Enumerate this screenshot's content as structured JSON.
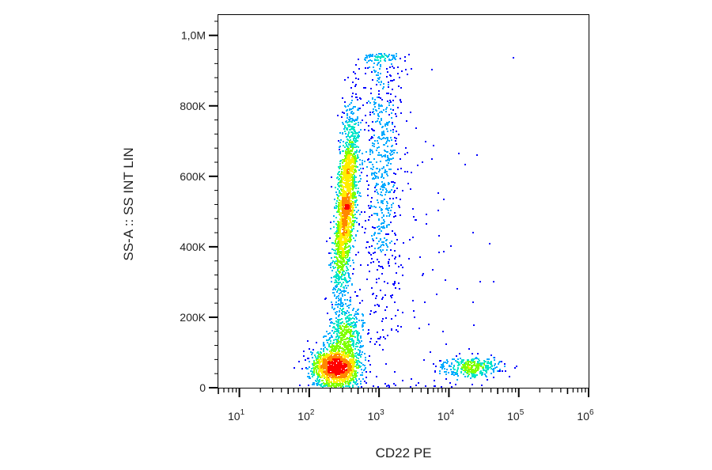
{
  "chart_data": {
    "type": "scatter",
    "subtype": "flow-cytometry-density-dot-plot",
    "xlabel": "CD22 PE",
    "ylabel": "SS-A :: SS INT LIN",
    "x_scale": "log",
    "y_scale": "linear",
    "xlim": [
      5,
      1000000
    ],
    "ylim": [
      0,
      1060000
    ],
    "x_ticks": [
      {
        "value": 10,
        "base": "10",
        "exp": "1"
      },
      {
        "value": 100,
        "base": "10",
        "exp": "2"
      },
      {
        "value": 1000,
        "base": "10",
        "exp": "3"
      },
      {
        "value": 10000,
        "base": "10",
        "exp": "4"
      },
      {
        "value": 100000,
        "base": "10",
        "exp": "5"
      },
      {
        "value": 1000000,
        "base": "10",
        "exp": "6"
      }
    ],
    "y_ticks": [
      {
        "value": 0,
        "label": "0"
      },
      {
        "value": 200000,
        "label": "200K"
      },
      {
        "value": 400000,
        "label": "400K"
      },
      {
        "value": 600000,
        "label": "600K"
      },
      {
        "value": 800000,
        "label": "800K"
      },
      {
        "value": 1000000,
        "label": "1,0M"
      }
    ],
    "grid": false,
    "colormap": [
      "#0000ff",
      "#00aaff",
      "#00e5c8",
      "#7fff00",
      "#ffee00",
      "#ff8800",
      "#ff0000"
    ],
    "populations": [
      {
        "center_x": 230,
        "center_y": 60000,
        "spread_log_x": 0.17,
        "spread_y": 30000,
        "events": 1400,
        "tilt": 0.0,
        "tilt_sd": 0.0
      },
      {
        "center_x": 340,
        "center_y": 150000,
        "spread_log_x": 0.12,
        "spread_y": 50000,
        "events": 500,
        "tilt": 0.0,
        "tilt_sd": 0.0
      },
      {
        "center_x": 330,
        "center_y": 520000,
        "spread_log_x": 0.07,
        "spread_y": 130000,
        "events": 2000,
        "tilt": 0.75,
        "tilt_sd": 0.0
      },
      {
        "center_x": 1100,
        "center_y": 640000,
        "spread_log_x": 0.14,
        "spread_y": 230000,
        "events": 700,
        "tilt": 0.0,
        "tilt_sd": 0.0
      },
      {
        "center_x": 20000,
        "center_y": 60000,
        "spread_log_x": 0.22,
        "spread_y": 14000,
        "events": 350,
        "tilt": 0.0,
        "tilt_sd": 0.0
      },
      {
        "center_x": 3000,
        "center_y": 300000,
        "spread_log_x": 0.55,
        "spread_y": 280000,
        "events": 120,
        "tilt": 0.0,
        "tilt_sd": 0.0
      }
    ],
    "saturation_y": 950000
  }
}
